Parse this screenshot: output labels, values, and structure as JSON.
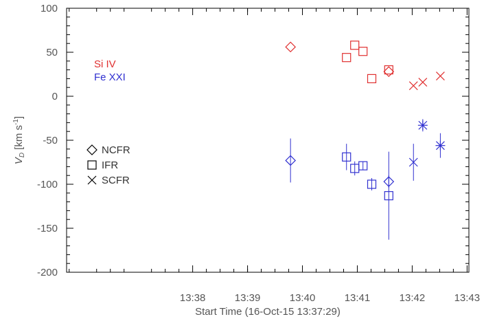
{
  "chart_data": {
    "type": "scatter",
    "xlabel": "Start Time (16-Oct-15 13:37:29)",
    "ylabel_main": "V",
    "ylabel_sub": "D",
    "ylabel_unit_prefix": "[km s",
    "ylabel_unit_exp": "-1",
    "ylabel_unit_suffix": "]",
    "x_unit": "minutes since 13:37:29 (UT)",
    "xlim": [
      -1.78,
      5.55
    ],
    "ylim": [
      -200,
      100
    ],
    "x_ticks": [
      {
        "value": 0.517,
        "label": "13:38"
      },
      {
        "value": 1.517,
        "label": "13:39"
      },
      {
        "value": 2.517,
        "label": "13:40"
      },
      {
        "value": 3.517,
        "label": "13:41"
      },
      {
        "value": 4.517,
        "label": "13:42"
      },
      {
        "value": 5.517,
        "label": "13:43"
      }
    ],
    "y_ticks": [
      {
        "value": 100,
        "label": "100"
      },
      {
        "value": 50,
        "label": "50"
      },
      {
        "value": 0,
        "label": "0"
      },
      {
        "value": -50,
        "label": "-50"
      },
      {
        "value": -100,
        "label": "-100"
      },
      {
        "value": -150,
        "label": "-150"
      },
      {
        "value": -200,
        "label": "-200"
      }
    ],
    "lines_legend": [
      {
        "name": "Si IV",
        "color": "#e03030"
      },
      {
        "name": "Fe XXI",
        "color": "#3030d0"
      }
    ],
    "symbol_legend": [
      {
        "name": "NCFR",
        "symbol": "diamond"
      },
      {
        "name": "IFR",
        "symbol": "square"
      },
      {
        "name": "SCFR",
        "symbol": "cross"
      }
    ],
    "series": [
      {
        "line": "Si IV",
        "color": "#e03030",
        "points": [
          {
            "x": 2.3,
            "y": 56,
            "symbol": "diamond"
          },
          {
            "x": 3.32,
            "y": 44,
            "symbol": "square"
          },
          {
            "x": 3.47,
            "y": 58,
            "symbol": "square"
          },
          {
            "x": 3.62,
            "y": 51,
            "symbol": "square"
          },
          {
            "x": 3.78,
            "y": 20,
            "symbol": "square"
          },
          {
            "x": 4.09,
            "y": 30,
            "symbol": "square"
          },
          {
            "x": 4.09,
            "y": 28,
            "symbol": "diamond"
          },
          {
            "x": 4.54,
            "y": 12,
            "symbol": "cross"
          },
          {
            "x": 4.71,
            "y": 16,
            "symbol": "cross"
          },
          {
            "x": 5.03,
            "y": 23,
            "symbol": "cross"
          }
        ]
      },
      {
        "line": "Fe XXI",
        "color": "#3030d0",
        "points": [
          {
            "x": 2.3,
            "y": -73,
            "yerr_low": -98,
            "yerr_high": -48,
            "symbol": "diamond"
          },
          {
            "x": 3.32,
            "y": -69,
            "yerr_low": -84,
            "yerr_high": -54,
            "symbol": "square"
          },
          {
            "x": 3.47,
            "y": -82,
            "yerr_low": -90,
            "yerr_high": -74,
            "symbol": "square"
          },
          {
            "x": 3.62,
            "y": -79,
            "yerr_low": -84,
            "yerr_high": -74,
            "symbol": "square"
          },
          {
            "x": 3.78,
            "y": -100,
            "yerr_low": -107,
            "yerr_high": -93,
            "symbol": "square"
          },
          {
            "x": 4.09,
            "y": -113,
            "yerr_low": -163,
            "yerr_high": -63,
            "symbol": "square"
          },
          {
            "x": 4.09,
            "y": -97,
            "yerr_low": -104,
            "yerr_high": -90,
            "symbol": "diamond"
          },
          {
            "x": 4.54,
            "y": -75,
            "yerr_low": -96,
            "yerr_high": -54,
            "symbol": "cross"
          },
          {
            "x": 4.71,
            "y": -33,
            "yerr_low": -40,
            "yerr_high": -26,
            "symbol": "cross"
          },
          {
            "x": 5.03,
            "y": -56,
            "yerr_low": -70,
            "yerr_high": -42,
            "symbol": "cross"
          },
          {
            "x": 4.71,
            "y": -33,
            "symbol": "plus"
          },
          {
            "x": 5.03,
            "y": -56,
            "symbol": "plus"
          }
        ]
      }
    ]
  }
}
